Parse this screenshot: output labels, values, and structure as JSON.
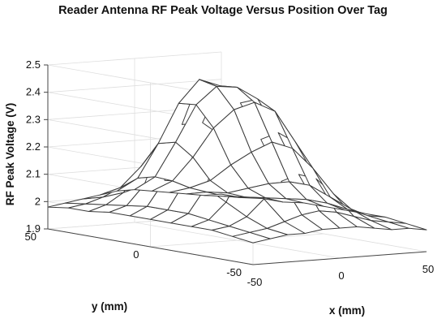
{
  "chart_data": {
    "type": "surface",
    "title": "Reader Antenna RF Peak Voltage Versus Position Over Tag",
    "xlabel": "x (mm)",
    "ylabel": "y (mm)",
    "zlabel": "RF Peak Voltage (V)",
    "xlim": [
      -50,
      50
    ],
    "ylim": [
      -50,
      50
    ],
    "zlim": [
      1.9,
      2.5
    ],
    "x_ticks": [
      "-50",
      "0",
      "50"
    ],
    "y_ticks": [
      "-50",
      "0",
      "50"
    ],
    "z_ticks": [
      "1.9",
      "2",
      "2.1",
      "2.2",
      "2.3",
      "2.4",
      "2.5"
    ],
    "grid": true,
    "x": [
      -50,
      -40,
      -30,
      -20,
      -10,
      0,
      10,
      20,
      30,
      40,
      50
    ],
    "y": [
      -50,
      -40,
      -30,
      -20,
      -10,
      0,
      10,
      20,
      30,
      40,
      50
    ],
    "z_note": "rows indexed by y, columns by x; peak ~2.48 V near x=-10, y=10",
    "z": [
      [
        1.98,
        1.99,
        2.0,
        2.0,
        2.01,
        2.01,
        2.01,
        2.0,
        1.99,
        1.99,
        1.98
      ],
      [
        1.99,
        2.0,
        2.01,
        2.03,
        2.05,
        2.06,
        2.05,
        2.03,
        2.01,
        2.0,
        1.99
      ],
      [
        2.0,
        2.01,
        2.04,
        2.1,
        2.16,
        2.18,
        2.16,
        2.1,
        2.04,
        2.01,
        2.0
      ],
      [
        2.0,
        2.02,
        2.08,
        2.2,
        2.3,
        2.32,
        2.28,
        2.18,
        2.07,
        2.02,
        2.0
      ],
      [
        2.0,
        2.03,
        2.12,
        2.3,
        2.42,
        2.43,
        2.38,
        2.24,
        2.1,
        2.03,
        2.0
      ],
      [
        2.0,
        2.03,
        2.13,
        2.34,
        2.47,
        2.46,
        2.4,
        2.25,
        2.1,
        2.03,
        2.0
      ],
      [
        2.0,
        2.03,
        2.12,
        2.32,
        2.48,
        2.45,
        2.36,
        2.2,
        2.08,
        2.02,
        2.0
      ],
      [
        2.0,
        2.02,
        2.09,
        2.25,
        2.38,
        2.37,
        2.28,
        2.14,
        2.05,
        2.01,
        1.99
      ],
      [
        1.99,
        2.01,
        2.05,
        2.14,
        2.22,
        2.22,
        2.16,
        2.07,
        2.02,
        2.0,
        1.99
      ],
      [
        1.99,
        2.0,
        2.02,
        2.05,
        2.08,
        2.08,
        2.06,
        2.03,
        2.01,
        1.99,
        1.98
      ],
      [
        1.98,
        1.99,
        2.0,
        2.01,
        2.02,
        2.02,
        2.01,
        2.0,
        1.99,
        1.98,
        1.98
      ]
    ]
  }
}
